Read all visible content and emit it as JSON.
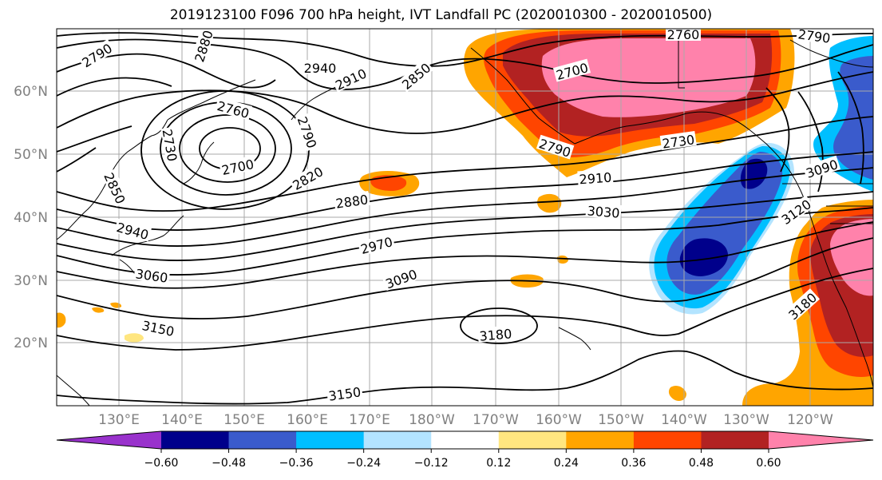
{
  "title": "2019123100 F096 700 hPa height, IVT Landfall PC (2020010300 - 2020010500)",
  "lat_labels": [
    "60°N",
    "50°N",
    "40°N",
    "30°N",
    "20°N"
  ],
  "lon_labels": [
    "130°E",
    "140°E",
    "150°E",
    "160°E",
    "170°E",
    "180°W",
    "170°W",
    "160°W",
    "150°W",
    "140°W",
    "130°W",
    "120°W"
  ],
  "contour_labels": [
    "2790",
    "2880",
    "2940",
    "2910",
    "2850",
    "2760",
    "2790",
    "2760",
    "2790",
    "2730",
    "2700",
    "2820",
    "2850",
    "2700",
    "2790",
    "2730",
    "2910",
    "2880",
    "3030",
    "3090",
    "3120",
    "2940",
    "2970",
    "3060",
    "3090",
    "3150",
    "3180",
    "3180",
    "3150"
  ],
  "colorbar": {
    "ticks": [
      "−0.60",
      "−0.48",
      "−0.36",
      "−0.24",
      "−0.12",
      "0.12",
      "0.24",
      "0.36",
      "0.48",
      "0.60"
    ],
    "colors": [
      "#9932cc",
      "#00008b",
      "#3a5bcc",
      "#00bfff",
      "#b3e4ff",
      "#ffffff",
      "#ffe680",
      "#ffa500",
      "#ff4500",
      "#b22222",
      "#ff82ab"
    ]
  }
}
